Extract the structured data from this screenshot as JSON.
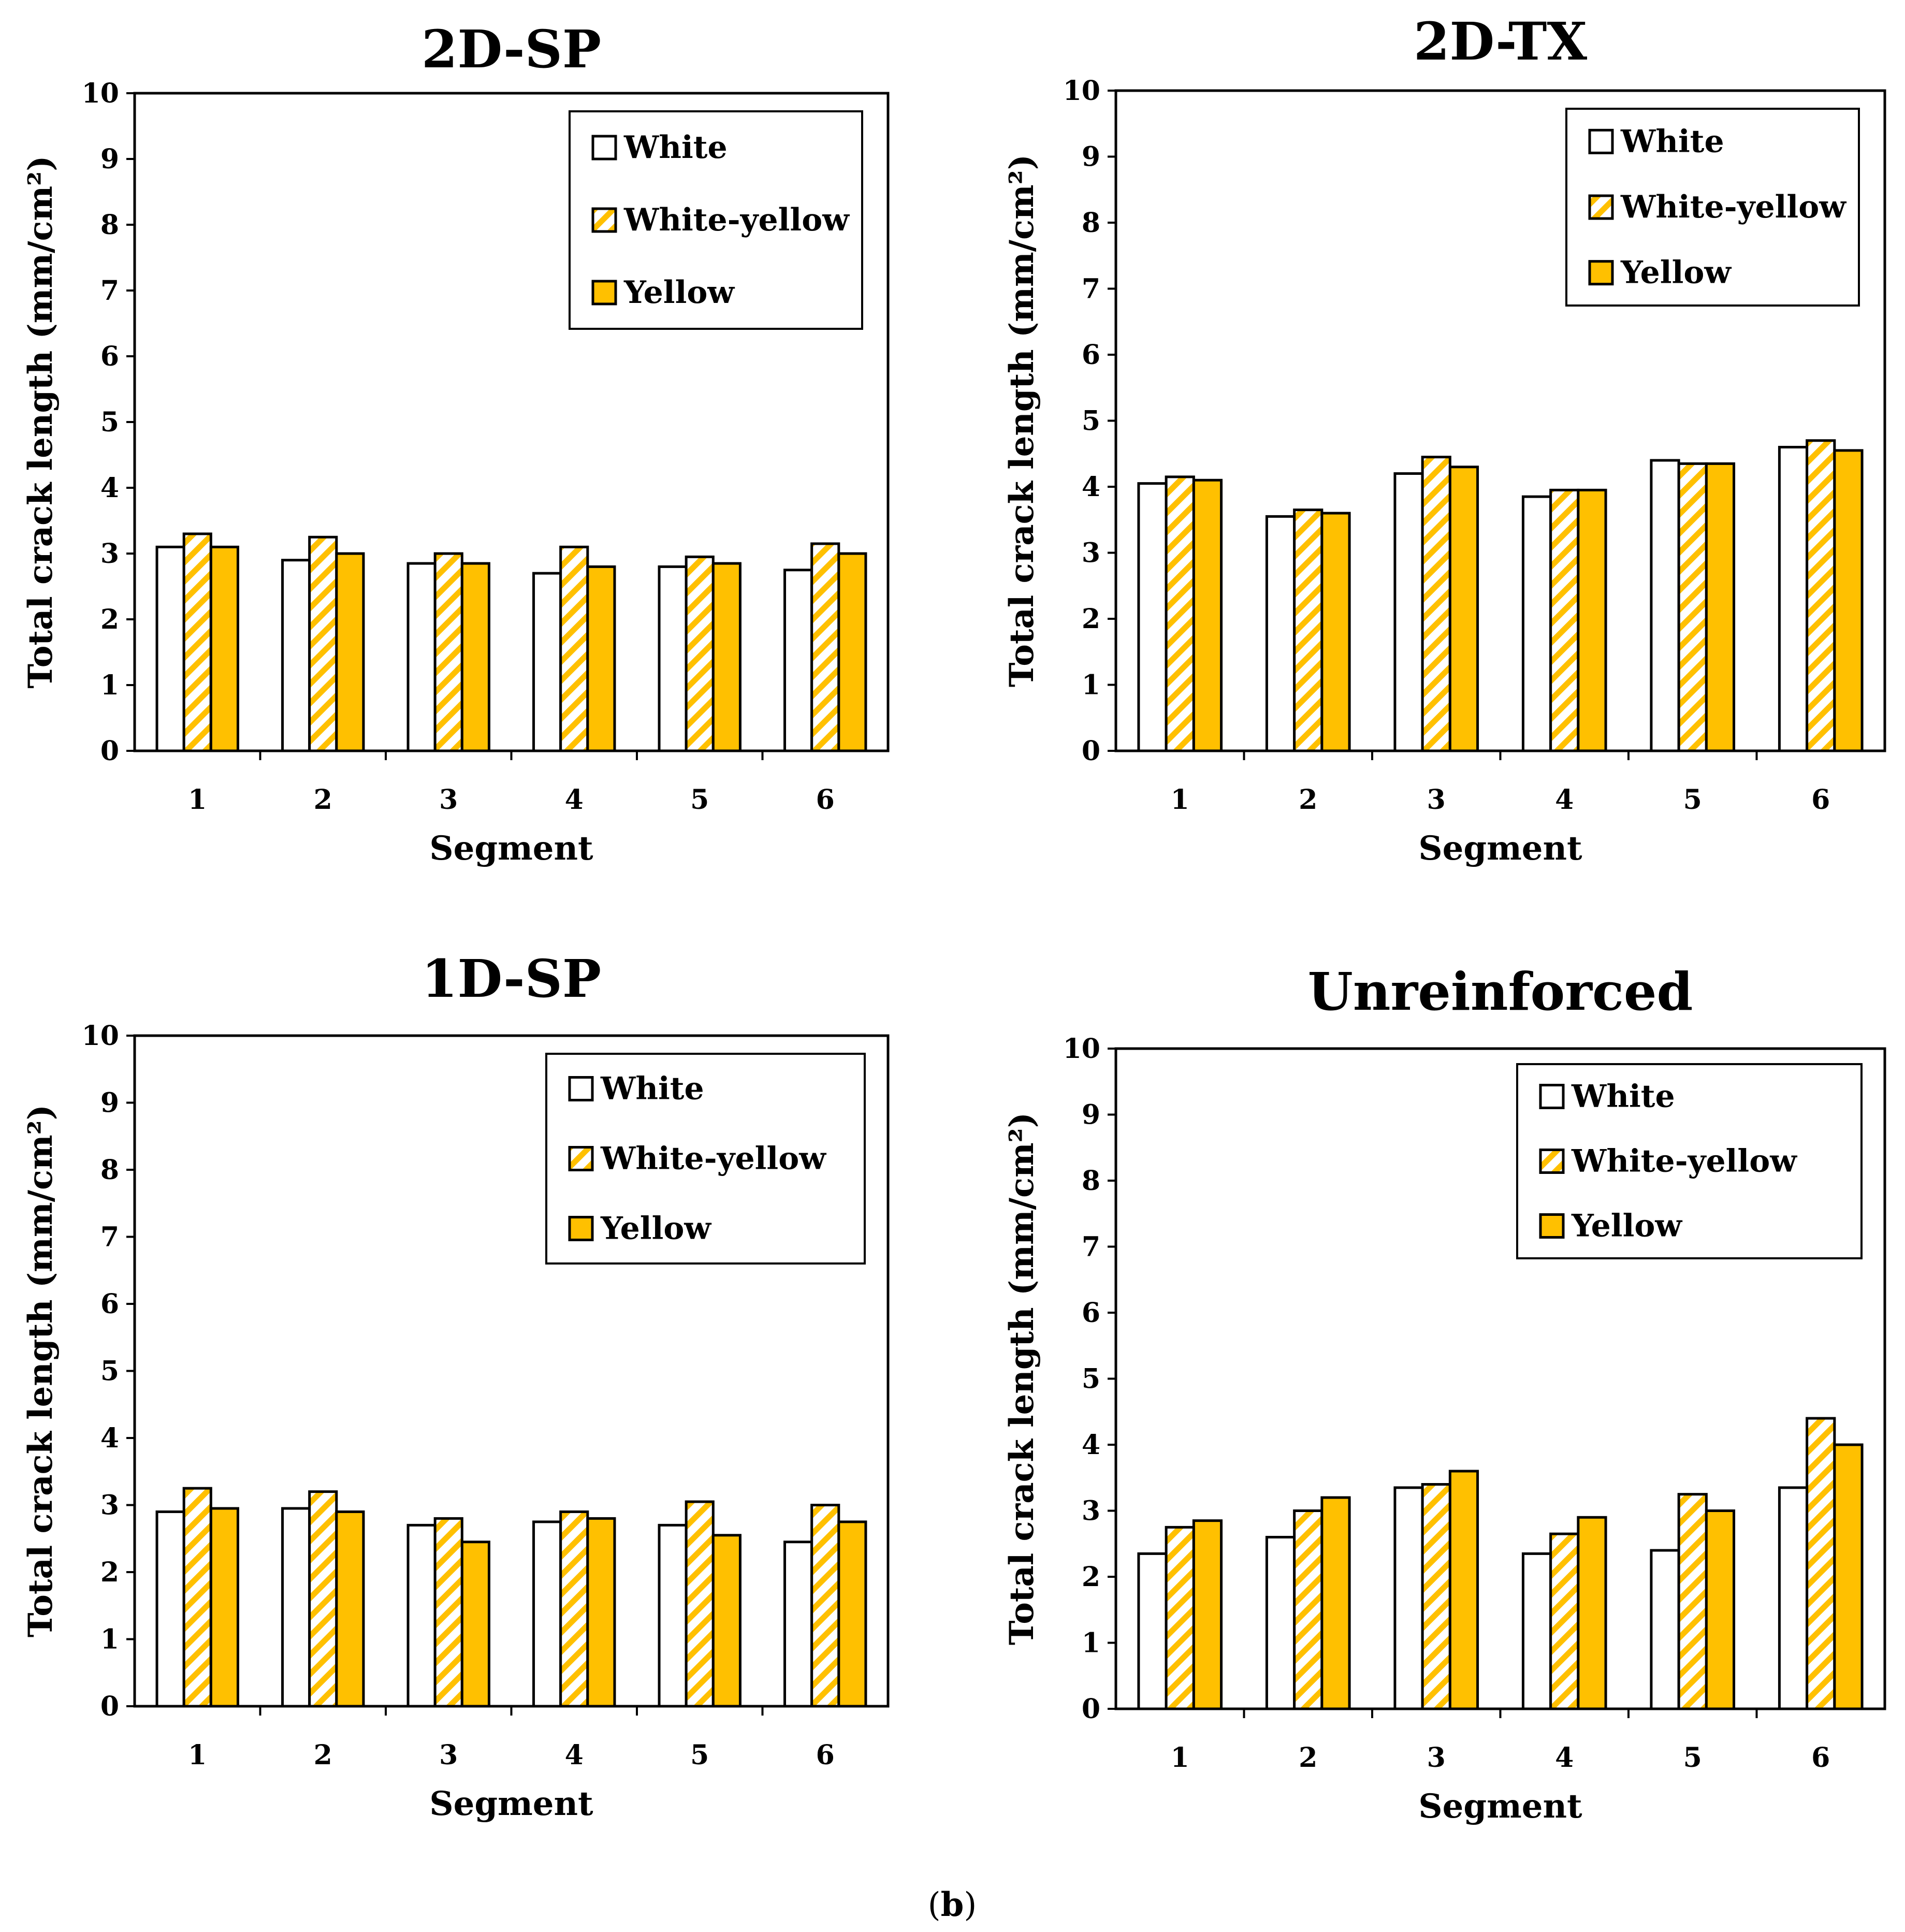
{
  "figure": {
    "caption_open": "(",
    "caption_letter": "b",
    "caption_close": ")"
  },
  "colors": {
    "yellow": "#FFC000",
    "stroke": "#000000",
    "white": "#FFFFFF"
  },
  "chart_data": [
    {
      "type": "bar",
      "title": "2D-SP",
      "xlabel": "Segment",
      "ylabel": "Total crack length (mm/cm²)",
      "ylim": [
        0,
        10
      ],
      "yticks": [
        0,
        1,
        2,
        3,
        4,
        5,
        6,
        7,
        8,
        9,
        10
      ],
      "categories": [
        "1",
        "2",
        "3",
        "4",
        "5",
        "6"
      ],
      "legend_position": "top-right",
      "series": [
        {
          "name": "White",
          "style": "white",
          "values": [
            3.1,
            2.9,
            2.85,
            2.7,
            2.8,
            2.75
          ]
        },
        {
          "name": "White-yellow",
          "style": "hatched",
          "values": [
            3.3,
            3.25,
            3.0,
            3.1,
            2.95,
            3.15
          ]
        },
        {
          "name": "Yellow",
          "style": "yellow",
          "values": [
            3.1,
            3.0,
            2.85,
            2.8,
            2.85,
            3.0
          ]
        }
      ]
    },
    {
      "type": "bar",
      "title": "2D-TX",
      "xlabel": "Segment",
      "ylabel": "Total crack length (mm/cm²)",
      "ylim": [
        0,
        10
      ],
      "yticks": [
        0,
        1,
        2,
        3,
        4,
        5,
        6,
        7,
        8,
        9,
        10
      ],
      "categories": [
        "1",
        "2",
        "3",
        "4",
        "5",
        "6"
      ],
      "legend_position": "top-right",
      "series": [
        {
          "name": "White",
          "style": "white",
          "values": [
            4.05,
            3.55,
            4.2,
            3.85,
            4.4,
            4.6
          ]
        },
        {
          "name": "White-yellow",
          "style": "hatched",
          "values": [
            4.15,
            3.65,
            4.45,
            3.95,
            4.35,
            4.7
          ]
        },
        {
          "name": "Yellow",
          "style": "yellow",
          "values": [
            4.1,
            3.6,
            4.3,
            3.95,
            4.35,
            4.55
          ]
        }
      ]
    },
    {
      "type": "bar",
      "title": "1D-SP",
      "xlabel": "Segment",
      "ylabel": "Total crack length (mm/cm²)",
      "ylim": [
        0,
        10
      ],
      "yticks": [
        0,
        1,
        2,
        3,
        4,
        5,
        6,
        7,
        8,
        9,
        10
      ],
      "categories": [
        "1",
        "2",
        "3",
        "4",
        "5",
        "6"
      ],
      "legend_position": "top-right",
      "series": [
        {
          "name": "White",
          "style": "white",
          "values": [
            2.9,
            2.95,
            2.7,
            2.75,
            2.7,
            2.45
          ]
        },
        {
          "name": "White-yellow",
          "style": "hatched",
          "values": [
            3.25,
            3.2,
            2.8,
            2.9,
            3.05,
            3.0
          ]
        },
        {
          "name": "Yellow",
          "style": "yellow",
          "values": [
            2.95,
            2.9,
            2.45,
            2.8,
            2.55,
            2.75
          ]
        }
      ]
    },
    {
      "type": "bar",
      "title": "Unreinforced",
      "xlabel": "Segment",
      "ylabel": "Total crack length (mm/cm²)",
      "ylim": [
        0,
        10
      ],
      "yticks": [
        0,
        1,
        2,
        3,
        4,
        5,
        6,
        7,
        8,
        9,
        10
      ],
      "categories": [
        "1",
        "2",
        "3",
        "4",
        "5",
        "6"
      ],
      "legend_position": "top-right",
      "series": [
        {
          "name": "White",
          "style": "white",
          "values": [
            2.35,
            2.6,
            3.35,
            2.35,
            2.4,
            3.35
          ]
        },
        {
          "name": "White-yellow",
          "style": "hatched",
          "values": [
            2.75,
            3.0,
            3.4,
            2.65,
            3.25,
            4.4
          ]
        },
        {
          "name": "Yellow",
          "style": "yellow",
          "values": [
            2.85,
            3.2,
            3.6,
            2.9,
            3.0,
            4.0
          ]
        }
      ]
    }
  ]
}
